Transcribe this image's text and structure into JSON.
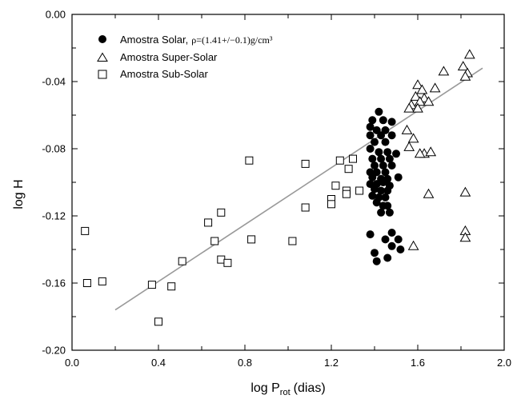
{
  "chart_data": {
    "type": "scatter",
    "xlabel": "log P",
    "xlabel_sub": "rot",
    "xlabel_suffix": "(dias)",
    "ylabel": "log H",
    "xlim": [
      0.0,
      2.0
    ],
    "ylim": [
      -0.2,
      0.0
    ],
    "xticks": [
      "0.0",
      "0.4",
      "0.8",
      "1.2",
      "1.6",
      "2.0"
    ],
    "yticks": [
      "0.00",
      "-0.04",
      "-0.08",
      "-0.12",
      "-0.16",
      "-0.20"
    ],
    "grid": false,
    "legend_position": "top-left",
    "fit_line": {
      "x": [
        0.2,
        1.9
      ],
      "y": [
        -0.176,
        -0.032
      ],
      "color": "#999999"
    },
    "series": [
      {
        "name": "Amostra Solar,",
        "name_suffix": "ρ=(1.41+/−0.1)g/cm³",
        "marker": "filled-circle",
        "points": [
          [
            1.42,
            -0.058
          ],
          [
            1.39,
            -0.063
          ],
          [
            1.44,
            -0.063
          ],
          [
            1.48,
            -0.064
          ],
          [
            1.38,
            -0.067
          ],
          [
            1.41,
            -0.069
          ],
          [
            1.45,
            -0.069
          ],
          [
            1.38,
            -0.072
          ],
          [
            1.43,
            -0.072
          ],
          [
            1.48,
            -0.072
          ],
          [
            1.4,
            -0.076
          ],
          [
            1.45,
            -0.076
          ],
          [
            1.38,
            -0.08
          ],
          [
            1.42,
            -0.082
          ],
          [
            1.46,
            -0.082
          ],
          [
            1.5,
            -0.083
          ],
          [
            1.39,
            -0.086
          ],
          [
            1.43,
            -0.086
          ],
          [
            1.47,
            -0.086
          ],
          [
            1.4,
            -0.09
          ],
          [
            1.44,
            -0.09
          ],
          [
            1.48,
            -0.09
          ],
          [
            1.38,
            -0.094
          ],
          [
            1.41,
            -0.094
          ],
          [
            1.45,
            -0.094
          ],
          [
            1.39,
            -0.097
          ],
          [
            1.43,
            -0.098
          ],
          [
            1.46,
            -0.098
          ],
          [
            1.51,
            -0.097
          ],
          [
            1.38,
            -0.101
          ],
          [
            1.41,
            -0.101
          ],
          [
            1.44,
            -0.1
          ],
          [
            1.47,
            -0.102
          ],
          [
            1.4,
            -0.104
          ],
          [
            1.43,
            -0.105
          ],
          [
            1.46,
            -0.105
          ],
          [
            1.39,
            -0.108
          ],
          [
            1.42,
            -0.109
          ],
          [
            1.45,
            -0.109
          ],
          [
            1.41,
            -0.112
          ],
          [
            1.44,
            -0.114
          ],
          [
            1.46,
            -0.114
          ],
          [
            1.43,
            -0.118
          ],
          [
            1.47,
            -0.118
          ],
          [
            1.38,
            -0.131
          ],
          [
            1.48,
            -0.13
          ],
          [
            1.45,
            -0.134
          ],
          [
            1.51,
            -0.134
          ],
          [
            1.48,
            -0.138
          ],
          [
            1.52,
            -0.14
          ],
          [
            1.4,
            -0.142
          ],
          [
            1.46,
            -0.145
          ],
          [
            1.41,
            -0.147
          ]
        ]
      },
      {
        "name": "Amostra Super-Solar",
        "marker": "open-triangle",
        "points": [
          [
            1.84,
            -0.024
          ],
          [
            1.72,
            -0.034
          ],
          [
            1.81,
            -0.031
          ],
          [
            1.83,
            -0.035
          ],
          [
            1.82,
            -0.037
          ],
          [
            1.6,
            -0.042
          ],
          [
            1.62,
            -0.045
          ],
          [
            1.68,
            -0.044
          ],
          [
            1.59,
            -0.049
          ],
          [
            1.63,
            -0.05
          ],
          [
            1.61,
            -0.052
          ],
          [
            1.65,
            -0.052
          ],
          [
            1.57,
            -0.054
          ],
          [
            1.56,
            -0.056
          ],
          [
            1.6,
            -0.056
          ],
          [
            1.55,
            -0.069
          ],
          [
            1.58,
            -0.074
          ],
          [
            1.56,
            -0.079
          ],
          [
            1.63,
            -0.083
          ],
          [
            1.61,
            -0.083
          ],
          [
            1.66,
            -0.082
          ],
          [
            1.65,
            -0.107
          ],
          [
            1.82,
            -0.106
          ],
          [
            1.82,
            -0.129
          ],
          [
            1.82,
            -0.133
          ],
          [
            1.58,
            -0.138
          ]
        ]
      },
      {
        "name": "Amostra Sub-Solar",
        "marker": "open-square",
        "points": [
          [
            0.06,
            -0.129
          ],
          [
            0.07,
            -0.16
          ],
          [
            0.14,
            -0.159
          ],
          [
            0.37,
            -0.161
          ],
          [
            0.4,
            -0.183
          ],
          [
            0.46,
            -0.162
          ],
          [
            0.51,
            -0.147
          ],
          [
            0.63,
            -0.124
          ],
          [
            0.66,
            -0.135
          ],
          [
            0.69,
            -0.118
          ],
          [
            0.69,
            -0.146
          ],
          [
            0.72,
            -0.148
          ],
          [
            0.82,
            -0.087
          ],
          [
            0.83,
            -0.134
          ],
          [
            1.02,
            -0.135
          ],
          [
            1.08,
            -0.089
          ],
          [
            1.08,
            -0.115
          ],
          [
            1.2,
            -0.11
          ],
          [
            1.2,
            -0.113
          ],
          [
            1.22,
            -0.102
          ],
          [
            1.24,
            -0.087
          ],
          [
            1.27,
            -0.105
          ],
          [
            1.27,
            -0.107
          ],
          [
            1.28,
            -0.092
          ],
          [
            1.3,
            -0.086
          ],
          [
            1.33,
            -0.105
          ]
        ]
      }
    ]
  }
}
